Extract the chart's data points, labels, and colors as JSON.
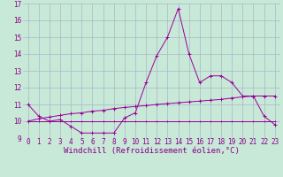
{
  "x": [
    0,
    1,
    2,
    3,
    4,
    5,
    6,
    7,
    8,
    9,
    10,
    11,
    12,
    13,
    14,
    15,
    16,
    17,
    18,
    19,
    20,
    21,
    22,
    23
  ],
  "line1": [
    11.0,
    10.3,
    10.0,
    10.1,
    9.7,
    9.3,
    9.3,
    9.3,
    9.3,
    10.2,
    10.5,
    12.3,
    13.9,
    15.0,
    16.7,
    14.0,
    12.3,
    12.7,
    12.7,
    12.3,
    11.5,
    11.5,
    10.3,
    9.8
  ],
  "line2": [
    10.0,
    10.15,
    10.25,
    10.35,
    10.45,
    10.5,
    10.6,
    10.65,
    10.75,
    10.82,
    10.88,
    10.93,
    11.0,
    11.05,
    11.1,
    11.15,
    11.2,
    11.25,
    11.3,
    11.38,
    11.45,
    11.5,
    11.5,
    11.5
  ],
  "line3": [
    10.0,
    10.0,
    10.0,
    10.0,
    10.0,
    10.0,
    10.0,
    10.0,
    10.0,
    10.0,
    10.0,
    10.0,
    10.0,
    10.0,
    10.0,
    10.0,
    10.0,
    10.0,
    10.0,
    10.0,
    10.0,
    10.0,
    10.0,
    10.0
  ],
  "line_color": "#990099",
  "bg_color": "#c8e8d8",
  "grid_color": "#a8b8c8",
  "xlabel": "Windchill (Refroidissement éolien,°C)",
  "ylim": [
    9,
    17
  ],
  "xlim_min": -0.5,
  "xlim_max": 23.5,
  "yticks": [
    9,
    10,
    11,
    12,
    13,
    14,
    15,
    16,
    17
  ],
  "xticks": [
    0,
    1,
    2,
    3,
    4,
    5,
    6,
    7,
    8,
    9,
    10,
    11,
    12,
    13,
    14,
    15,
    16,
    17,
    18,
    19,
    20,
    21,
    22,
    23
  ],
  "tick_color": "#880088",
  "label_fontsize": 6.5,
  "tick_fontsize": 5.5
}
